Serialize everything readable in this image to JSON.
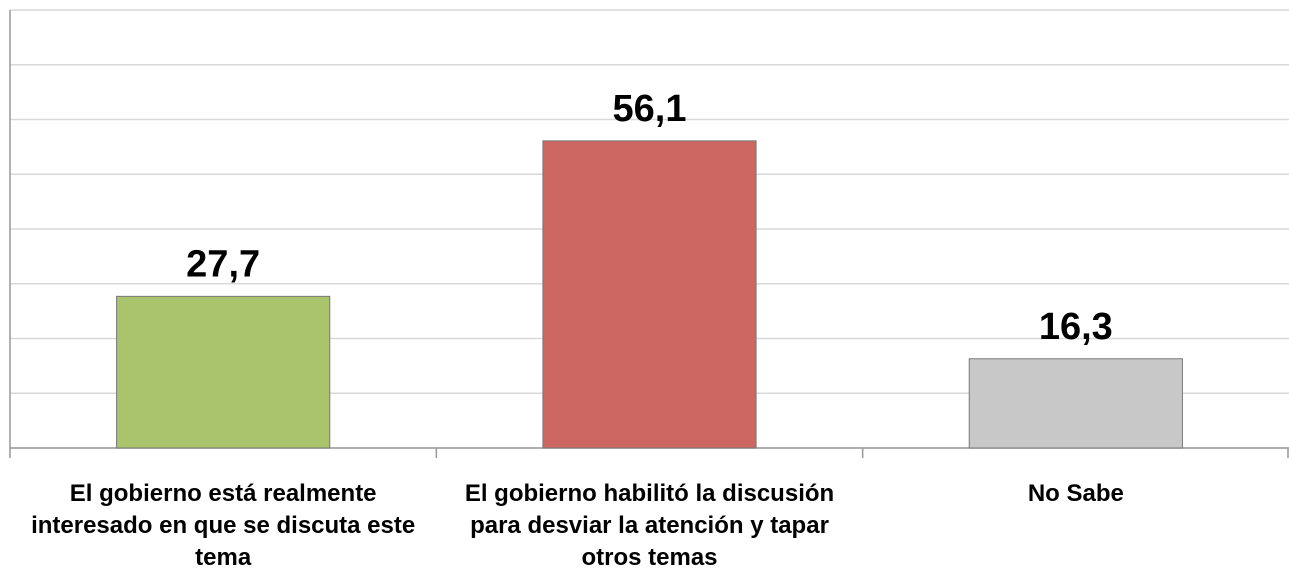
{
  "chart_data": {
    "type": "bar",
    "categories": [
      "El gobierno está realmente interesado en que se discuta este tema",
      "El gobierno habilitó la discusión para desviar la atención y tapar otros temas",
      "No Sabe"
    ],
    "values": [
      27.7,
      56.1,
      16.3
    ],
    "value_labels": [
      "27,7",
      "56,1",
      "16,3"
    ],
    "colors": [
      "#a9c46c",
      "#cc6660",
      "#c8c8c8"
    ],
    "ylim": [
      0,
      80
    ],
    "yticks": [
      0,
      10,
      20,
      30,
      40,
      50,
      60,
      70,
      80
    ],
    "grid": true
  }
}
